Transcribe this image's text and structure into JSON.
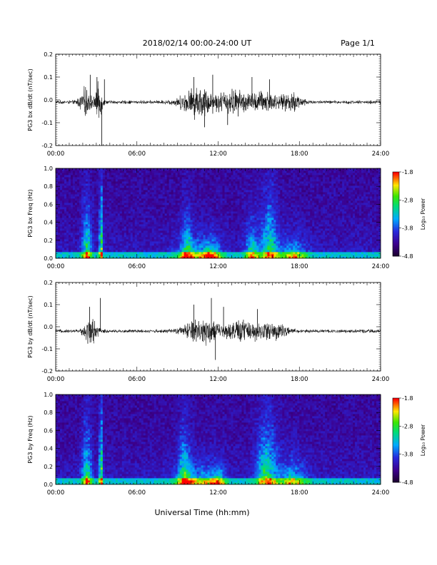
{
  "header": {
    "date_range": "2018/02/14  00:00-24:00 UT",
    "page": "Page 1/1"
  },
  "footer": {
    "xlabel": "Universal Time (hh:mm)"
  },
  "chart_data": [
    {
      "type": "line",
      "ylabel": "PG3 bx dB/dt (nT/sec)",
      "x_ticks": [
        "00:00",
        "06:00",
        "12:00",
        "18:00",
        "24:00"
      ],
      "xlim_hours": [
        0,
        24
      ],
      "ylim": [
        -0.2,
        0.2
      ],
      "y_ticks": [
        "0.2",
        "0.1",
        "0.0",
        "-0.1",
        "-0.2"
      ],
      "baseline": -0.01,
      "bursts": [
        {
          "center_h": 2.2,
          "width_h": 0.9,
          "amp": 0.045
        },
        {
          "center_h": 3.2,
          "width_h": 0.5,
          "amp": 0.06
        },
        {
          "center_h": 10.5,
          "width_h": 2.5,
          "amp": 0.05
        },
        {
          "center_h": 13.2,
          "width_h": 2.5,
          "amp": 0.04
        },
        {
          "center_h": 15.5,
          "width_h": 2.0,
          "amp": 0.035
        },
        {
          "center_h": 17.5,
          "width_h": 1.5,
          "amp": 0.03
        }
      ],
      "spikes": [
        {
          "t": 2.55,
          "v": 0.11
        },
        {
          "t": 3.05,
          "v": 0.1
        },
        {
          "t": 3.4,
          "v": -0.2
        },
        {
          "t": 3.6,
          "v": 0.09
        },
        {
          "t": 10.2,
          "v": 0.1
        },
        {
          "t": 11.6,
          "v": 0.11
        },
        {
          "t": 11.0,
          "v": -0.12
        },
        {
          "t": 12.7,
          "v": -0.11
        },
        {
          "t": 14.5,
          "v": 0.1
        },
        {
          "t": 15.8,
          "v": 0.09
        }
      ]
    },
    {
      "type": "heatmap",
      "ylabel": "PG3 bx Freq (Hz)",
      "x_ticks": [
        "00:00",
        "06:00",
        "12:00",
        "18:00",
        "24:00"
      ],
      "y_ticks": [
        "1.0",
        "0.8",
        "0.6",
        "0.4",
        "0.2",
        "0.0"
      ],
      "ylim": [
        0,
        1
      ],
      "colorbar": {
        "label": "Log₁₀ Power",
        "ticks": [
          "-1.8",
          "-2.8",
          "-3.8",
          "-4.8"
        ],
        "range": [
          -4.8,
          -1.8
        ]
      },
      "activity": [
        {
          "center_h": 2.3,
          "width_h": 0.7,
          "level": 0.55,
          "reach": 0.7
        },
        {
          "center_h": 3.35,
          "width_h": 0.25,
          "level": 0.7,
          "reach": 0.95
        },
        {
          "center_h": 9.7,
          "width_h": 0.8,
          "level": 0.45,
          "reach": 0.55
        },
        {
          "center_h": 10.5,
          "width_h": 3.0,
          "level": 0.4,
          "reach": 0.25
        },
        {
          "center_h": 11.5,
          "width_h": 1.2,
          "level": 0.55,
          "reach": 0.2
        },
        {
          "center_h": 14.5,
          "width_h": 1.0,
          "level": 0.5,
          "reach": 0.45
        },
        {
          "center_h": 15.8,
          "width_h": 1.2,
          "level": 0.55,
          "reach": 0.75
        },
        {
          "center_h": 17.5,
          "width_h": 2.0,
          "level": 0.45,
          "reach": 0.25
        }
      ]
    },
    {
      "type": "line",
      "ylabel": "PG3 by dB/dt (nT/sec)",
      "x_ticks": [
        "00:00",
        "06:00",
        "12:00",
        "18:00",
        "24:00"
      ],
      "xlim_hours": [
        0,
        24
      ],
      "ylim": [
        -0.2,
        0.2
      ],
      "y_ticks": [
        "0.2",
        "0.1",
        "0.0",
        "-0.1",
        "-0.2"
      ],
      "baseline": -0.02,
      "bursts": [
        {
          "center_h": 2.6,
          "width_h": 1.0,
          "amp": 0.045
        },
        {
          "center_h": 10.8,
          "width_h": 2.5,
          "amp": 0.045
        },
        {
          "center_h": 13.8,
          "width_h": 2.5,
          "amp": 0.035
        },
        {
          "center_h": 16.0,
          "width_h": 2.0,
          "amp": 0.03
        }
      ],
      "spikes": [
        {
          "t": 2.5,
          "v": 0.09
        },
        {
          "t": 3.3,
          "v": 0.13
        },
        {
          "t": 10.2,
          "v": 0.1
        },
        {
          "t": 11.5,
          "v": 0.13
        },
        {
          "t": 11.8,
          "v": -0.15
        },
        {
          "t": 12.4,
          "v": 0.09
        },
        {
          "t": 14.9,
          "v": 0.08
        }
      ]
    },
    {
      "type": "heatmap",
      "ylabel": "PG3 by Freq (Hz)",
      "x_ticks": [
        "00:00",
        "06:00",
        "12:00",
        "18:00",
        "24:00"
      ],
      "y_ticks": [
        "1.0",
        "0.8",
        "0.6",
        "0.4",
        "0.2",
        "0.0"
      ],
      "ylim": [
        0,
        1
      ],
      "colorbar": {
        "label": "Log₁₀ Power",
        "ticks": [
          "-1.8",
          "-2.8",
          "-3.8",
          "-4.8"
        ],
        "range": [
          -4.8,
          -1.8
        ]
      },
      "activity": [
        {
          "center_h": 2.3,
          "width_h": 0.7,
          "level": 0.55,
          "reach": 0.75
        },
        {
          "center_h": 3.35,
          "width_h": 0.25,
          "level": 0.7,
          "reach": 0.98
        },
        {
          "center_h": 9.5,
          "width_h": 0.9,
          "level": 0.45,
          "reach": 0.75
        },
        {
          "center_h": 10.5,
          "width_h": 3.0,
          "level": 0.45,
          "reach": 0.25
        },
        {
          "center_h": 12.0,
          "width_h": 1.0,
          "level": 0.5,
          "reach": 0.2
        },
        {
          "center_h": 15.6,
          "width_h": 1.5,
          "level": 0.55,
          "reach": 0.8
        },
        {
          "center_h": 17.5,
          "width_h": 2.0,
          "level": 0.45,
          "reach": 0.3
        }
      ]
    }
  ]
}
